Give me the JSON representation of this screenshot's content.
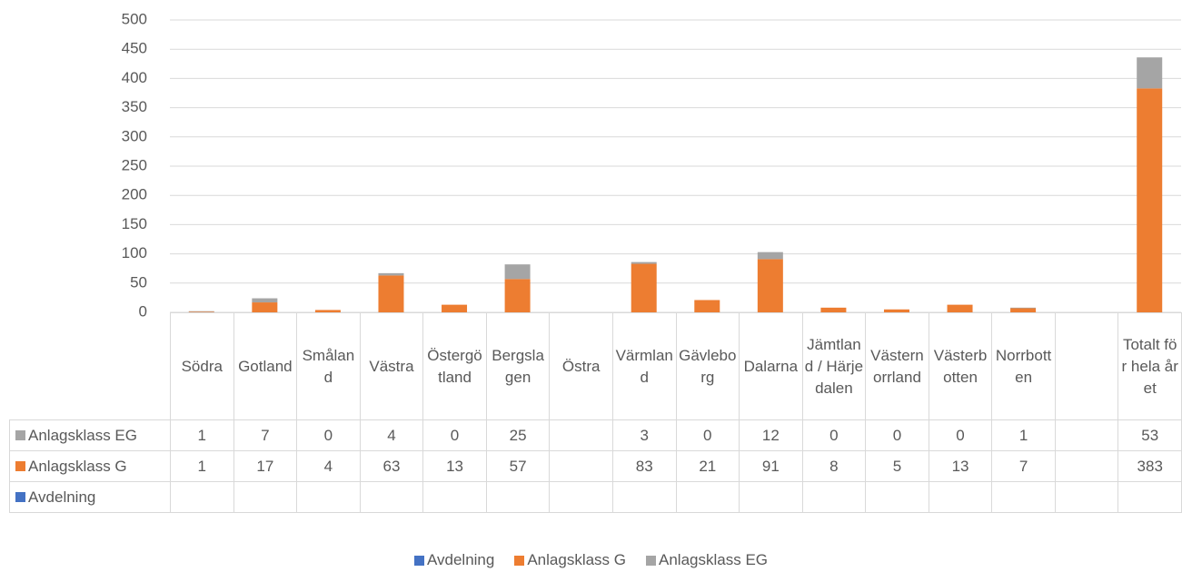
{
  "chart_data": {
    "type": "bar",
    "stacked": true,
    "categories": [
      "Södra",
      "Gotland",
      "Småland",
      "Västra",
      "Östergötland",
      "Bergslagen",
      "Östra",
      "Värmland",
      "Gävleborg",
      "Dalarna",
      "Jämtland / Härjedalen",
      "Västernorrland",
      "Västerbotten",
      "Norrbotten",
      null,
      "Totalt för hela året"
    ],
    "series": [
      {
        "name": "Avdelning",
        "color": "#4472c4",
        "values": [
          null,
          null,
          null,
          null,
          null,
          null,
          null,
          null,
          null,
          null,
          null,
          null,
          null,
          null,
          null,
          null
        ]
      },
      {
        "name": "Anlagsklass G",
        "color": "#ed7d31",
        "values": [
          1,
          17,
          4,
          63,
          13,
          57,
          null,
          83,
          21,
          91,
          8,
          5,
          13,
          7,
          null,
          383
        ]
      },
      {
        "name": "Anlagsklass EG",
        "color": "#a5a5a5",
        "values": [
          1,
          7,
          0,
          4,
          0,
          25,
          null,
          3,
          0,
          12,
          0,
          0,
          0,
          1,
          null,
          53
        ]
      }
    ],
    "ylim": [
      0,
      500
    ],
    "yticks": [
      0,
      50,
      100,
      150,
      200,
      250,
      300,
      350,
      400,
      450,
      500
    ],
    "grid": true,
    "legend": "bottom",
    "data_table": true
  }
}
